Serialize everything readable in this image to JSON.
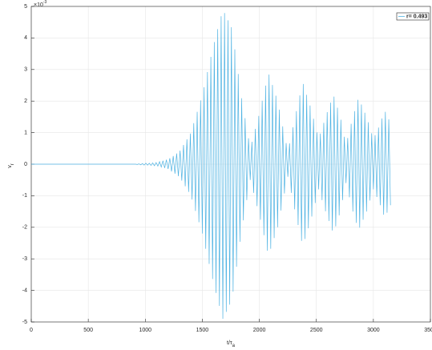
{
  "chart_data": {
    "type": "line",
    "xlabel": "t/τ",
    "xlabel_sub": "a",
    "ylabel": "v",
    "ylabel_sub": "r",
    "y_exponent": {
      "base": "×10",
      "power": "-3"
    },
    "xlim": [
      0,
      3500
    ],
    "xticks": [
      0,
      500,
      1000,
      1500,
      2000,
      2500,
      3000,
      3500
    ],
    "ylim": [
      -5,
      5
    ],
    "yticks": [
      -5,
      -4,
      -3,
      -2,
      -1,
      0,
      1,
      2,
      3,
      4,
      5
    ],
    "grid": true,
    "legend": "top-right",
    "x": [
      0,
      900,
      915,
      930,
      945,
      960,
      975,
      990,
      1005,
      1020,
      1035,
      1050,
      1065,
      1080,
      1095,
      1110,
      1125,
      1140,
      1155,
      1170,
      1185,
      1200,
      1215,
      1230,
      1245,
      1260,
      1275,
      1290,
      1305,
      1320,
      1335,
      1350,
      1365,
      1380,
      1395,
      1410,
      1425,
      1440,
      1455,
      1470,
      1485,
      1500,
      1515,
      1530,
      1545,
      1560,
      1575,
      1590,
      1605,
      1620,
      1635,
      1650,
      1665,
      1680,
      1695,
      1710,
      1725,
      1740,
      1755,
      1770,
      1785,
      1800,
      1815,
      1830,
      1845,
      1860,
      1875,
      1890,
      1905,
      1920,
      1935,
      1950,
      1965,
      1980,
      1995,
      2010,
      2025,
      2040,
      2055,
      2070,
      2085,
      2100,
      2115,
      2130,
      2145,
      2160,
      2175,
      2190,
      2205,
      2220,
      2235,
      2250,
      2265,
      2280,
      2295,
      2310,
      2325,
      2340,
      2355,
      2370,
      2385,
      2400,
      2415,
      2430,
      2445,
      2460,
      2475,
      2490,
      2505,
      2520,
      2535,
      2550,
      2565,
      2580,
      2595,
      2610,
      2625,
      2640,
      2655,
      2670,
      2685,
      2700,
      2715,
      2730,
      2745,
      2760,
      2775,
      2790,
      2805,
      2820,
      2835,
      2850,
      2865,
      2880,
      2895,
      2910,
      2925,
      2940,
      2955,
      2970,
      2985,
      3000,
      3015,
      3030,
      3045,
      3060,
      3075,
      3090,
      3105,
      3120,
      3135,
      3150
    ],
    "series": [
      {
        "name": "r= 0.493",
        "color": "#4fb3e3",
        "values": [
          0,
          0,
          0,
          -0.01,
          0.01,
          -0.02,
          0.02,
          -0.03,
          0.03,
          -0.03,
          0.03,
          -0.04,
          0.04,
          -0.05,
          0.05,
          -0.06,
          0.08,
          -0.09,
          0.11,
          -0.12,
          0.14,
          -0.15,
          0.19,
          -0.23,
          0.26,
          -0.3,
          0.34,
          -0.38,
          0.43,
          -0.52,
          0.61,
          -0.7,
          0.79,
          -0.88,
          0.97,
          -1.12,
          1.3,
          -1.48,
          1.66,
          -1.84,
          2.02,
          -2.2,
          2.44,
          -2.68,
          2.92,
          -3.16,
          3.4,
          -3.64,
          3.87,
          -4.08,
          4.28,
          -4.49,
          4.69,
          -4.9,
          4.79,
          -4.68,
          4.56,
          -4.45,
          4.34,
          -4.04,
          3.64,
          -3.25,
          2.86,
          -2.46,
          2.09,
          -1.78,
          1.46,
          -1.14,
          0.82,
          -0.5,
          0.71,
          -0.91,
          1.12,
          -1.33,
          1.53,
          -1.76,
          2.01,
          -2.25,
          2.49,
          -2.74,
          2.84,
          -2.68,
          2.51,
          -2.34,
          2.17,
          -2.0,
          1.73,
          -1.47,
          1.2,
          -0.93,
          0.67,
          -0.4,
          0.66,
          -0.91,
          1.17,
          -1.43,
          1.68,
          -1.93,
          2.18,
          -2.43,
          2.54,
          -2.37,
          2.2,
          -2.03,
          1.86,
          -1.66,
          1.44,
          -1.23,
          1.01,
          -0.8,
          0.97,
          -1.14,
          1.31,
          -1.49,
          1.65,
          -1.8,
          1.95,
          -2.1,
          2.14,
          -1.97,
          1.79,
          -1.62,
          1.41,
          -1.14,
          0.87,
          -0.6,
          0.83,
          -1.05,
          1.28,
          -1.5,
          1.68,
          -1.86,
          2.04,
          -2.01,
          1.89,
          -1.76,
          1.63,
          -1.5,
          1.33,
          -1.15,
          0.98,
          -0.8,
          0.92,
          -1.04,
          1.16,
          -1.3,
          1.45,
          -1.6,
          1.66,
          -1.54,
          1.42,
          -1.3
        ]
      }
    ]
  }
}
